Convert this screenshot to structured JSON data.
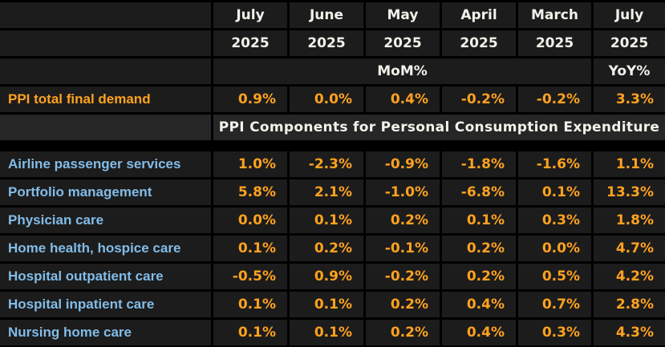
{
  "ui_colors": {
    "background": "#000000",
    "cell_background": "#1c1c1c",
    "section_background": "#262626",
    "header_text": "#f2f1ea",
    "value_orange": "#ffa21f",
    "label_blue": "#82bce8",
    "grid_line": "#000000"
  },
  "table": {
    "columns": [
      {
        "month": "July",
        "year": "2025"
      },
      {
        "month": "June",
        "year": "2025"
      },
      {
        "month": "May",
        "year": "2025"
      },
      {
        "month": "April",
        "year": "2025"
      },
      {
        "month": "March",
        "year": "2025"
      },
      {
        "month": "July",
        "year": "2025"
      }
    ],
    "mom_label": "MoM%",
    "yoy_label": "YoY%",
    "total_row": {
      "label": "PPI total final demand",
      "values": [
        "0.9%",
        "0.0%",
        "0.4%",
        "-0.2%",
        "-0.2%",
        "3.3%"
      ]
    },
    "section_header": "PPI Components for Personal Consumption Expenditure",
    "rows": [
      {
        "label": "Airline passenger services",
        "values": [
          "1.0%",
          "-2.3%",
          "-0.9%",
          "-1.8%",
          "-1.6%",
          "1.1%"
        ]
      },
      {
        "label": "Portfolio management",
        "values": [
          "5.8%",
          "2.1%",
          "-1.0%",
          "-6.8%",
          "0.1%",
          "13.3%"
        ]
      },
      {
        "label": "Physician care",
        "values": [
          "0.0%",
          "0.1%",
          "0.2%",
          "0.1%",
          "0.3%",
          "1.8%"
        ]
      },
      {
        "label": "Home health, hospice care",
        "values": [
          "0.1%",
          "0.2%",
          "-0.1%",
          "0.2%",
          "0.0%",
          "4.7%"
        ]
      },
      {
        "label": "Hospital outpatient care",
        "values": [
          "-0.5%",
          "0.9%",
          "-0.2%",
          "0.2%",
          "0.5%",
          "4.2%"
        ]
      },
      {
        "label": "Hospital inpatient care",
        "values": [
          "0.1%",
          "0.1%",
          "0.2%",
          "0.4%",
          "0.7%",
          "2.8%"
        ]
      },
      {
        "label": "Nursing home care",
        "values": [
          "0.1%",
          "0.1%",
          "0.2%",
          "0.4%",
          "0.3%",
          "4.3%"
        ]
      }
    ]
  },
  "chart_data": {
    "type": "table",
    "title": "PPI Components for Personal Consumption Expenditure",
    "columns": [
      "July 2025",
      "June 2025",
      "May 2025",
      "April 2025",
      "March 2025",
      "July 2025"
    ],
    "column_measures": [
      "MoM%",
      "MoM%",
      "MoM%",
      "MoM%",
      "MoM%",
      "YoY%"
    ],
    "units": "%",
    "rows": [
      {
        "label": "PPI total final demand",
        "values": [
          0.9,
          0.0,
          0.4,
          -0.2,
          -0.2,
          3.3
        ]
      },
      {
        "label": "Airline passenger services",
        "values": [
          1.0,
          -2.3,
          -0.9,
          -1.8,
          -1.6,
          1.1
        ]
      },
      {
        "label": "Portfolio management",
        "values": [
          5.8,
          2.1,
          -1.0,
          -6.8,
          0.1,
          13.3
        ]
      },
      {
        "label": "Physician care",
        "values": [
          0.0,
          0.1,
          0.2,
          0.1,
          0.3,
          1.8
        ]
      },
      {
        "label": "Home health, hospice care",
        "values": [
          0.1,
          0.2,
          -0.1,
          0.2,
          0.0,
          4.7
        ]
      },
      {
        "label": "Hospital outpatient care",
        "values": [
          -0.5,
          0.9,
          -0.2,
          0.2,
          0.5,
          4.2
        ]
      },
      {
        "label": "Hospital inpatient care",
        "values": [
          0.1,
          0.1,
          0.2,
          0.4,
          0.7,
          2.8
        ]
      },
      {
        "label": "Nursing home care",
        "values": [
          0.1,
          0.1,
          0.2,
          0.4,
          0.3,
          4.3
        ]
      }
    ]
  }
}
